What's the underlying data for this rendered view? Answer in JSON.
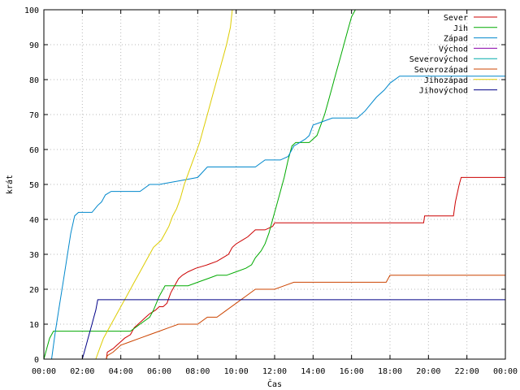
{
  "chart_data": {
    "type": "line",
    "title": "",
    "xlabel": "Čas",
    "ylabel": "krát",
    "xlim": [
      0,
      24
    ],
    "ylim": [
      0,
      100
    ],
    "x_ticks": [
      "00:00",
      "02:00",
      "04:00",
      "06:00",
      "08:00",
      "10:00",
      "12:00",
      "14:00",
      "16:00",
      "18:00",
      "20:00",
      "22:00",
      "00:00"
    ],
    "y_ticks": [
      0,
      10,
      20,
      30,
      40,
      50,
      60,
      70,
      80,
      90,
      100
    ],
    "grid": true,
    "legend": "top-right",
    "series": [
      {
        "name": "Sever",
        "color": "#cc0000",
        "x": [
          3.25,
          3.3,
          3.6,
          3.8,
          4.0,
          4.2,
          4.5,
          4.7,
          4.9,
          5.1,
          5.3,
          5.5,
          5.8,
          6.0,
          6.2,
          6.4,
          6.6,
          6.8,
          7.0,
          7.2,
          7.5,
          7.9,
          8.5,
          9.0,
          9.3,
          9.6,
          9.8,
          10.0,
          10.3,
          10.6,
          11.0,
          11.5,
          11.9,
          12.0,
          12.5,
          13.0,
          14.0,
          16.0,
          18.0,
          19.0,
          19.75,
          19.8,
          21.3,
          21.4,
          21.6,
          21.7,
          24.0
        ],
        "y": [
          0,
          2,
          3,
          4,
          5,
          6,
          7,
          9,
          10,
          11,
          12,
          13,
          14,
          15,
          15,
          16,
          19,
          21,
          23,
          24,
          25,
          26,
          27,
          28,
          29,
          30,
          32,
          33,
          34,
          35,
          37,
          37,
          38,
          39,
          39,
          39,
          39,
          39,
          39,
          39,
          39,
          41,
          41,
          45,
          50,
          52,
          52
        ]
      },
      {
        "name": "Jih",
        "color": "#00aa00",
        "x": [
          0,
          0.2,
          0.3,
          0.4,
          0.5,
          1.0,
          2.0,
          3.0,
          4.0,
          4.5,
          5.0,
          5.5,
          5.7,
          6.0,
          6.3,
          6.6,
          7.0,
          7.5,
          8.0,
          8.5,
          9.0,
          9.5,
          10.0,
          10.5,
          10.8,
          11.0,
          11.3,
          11.5,
          11.7,
          11.9,
          12.1,
          12.3,
          12.5,
          12.7,
          12.9,
          13.1,
          13.5,
          13.8,
          14.0,
          14.2,
          14.4,
          14.6,
          14.8,
          15.0,
          15.2,
          15.4,
          15.6,
          15.8,
          16.0,
          16.2
        ],
        "y": [
          0,
          4,
          6,
          7,
          8,
          8,
          8,
          8,
          8,
          8,
          10,
          12,
          14,
          18,
          21,
          21,
          21,
          21,
          22,
          23,
          24,
          24,
          25,
          26,
          27,
          29,
          31,
          33,
          36,
          40,
          44,
          48,
          52,
          57,
          61,
          62,
          62,
          62,
          63,
          64,
          67,
          70,
          74,
          78,
          82,
          86,
          90,
          94,
          98,
          100
        ]
      },
      {
        "name": "Západ",
        "color": "#0088cc",
        "x": [
          0.4,
          0.6,
          0.8,
          1.0,
          1.2,
          1.4,
          1.6,
          1.8,
          2.0,
          2.5,
          2.8,
          3.0,
          3.2,
          3.5,
          4.0,
          5.0,
          5.5,
          6.0,
          7.0,
          8.0,
          8.5,
          9.0,
          10.0,
          11.0,
          11.5,
          12.0,
          12.3,
          12.7,
          13.0,
          13.3,
          13.6,
          13.8,
          14.0,
          14.5,
          15.0,
          16.0,
          16.3,
          16.7,
          17.0,
          17.3,
          17.7,
          18.0,
          18.5,
          19.0,
          20.0,
          21.0,
          22.0,
          23.0,
          24.0
        ],
        "y": [
          0,
          8,
          15,
          22,
          29,
          36,
          41,
          42,
          42,
          42,
          44,
          45,
          47,
          48,
          48,
          48,
          50,
          50,
          51,
          52,
          55,
          55,
          55,
          55,
          57,
          57,
          57,
          58,
          61,
          62,
          63,
          64,
          67,
          68,
          69,
          69,
          69,
          71,
          73,
          75,
          77,
          79,
          81,
          81,
          81,
          81,
          81,
          81,
          81
        ]
      },
      {
        "name": "Východ",
        "color": "#8800aa",
        "x": [],
        "y": []
      },
      {
        "name": "Severovýchod",
        "color": "#00aaaa",
        "x": [],
        "y": []
      },
      {
        "name": "Severozápad",
        "color": "#cc4400",
        "x": [
          3.25,
          3.3,
          3.6,
          3.8,
          4.0,
          4.5,
          5.0,
          5.5,
          6.0,
          6.5,
          7.0,
          7.5,
          8.0,
          8.5,
          9.0,
          9.5,
          10.0,
          10.5,
          11.0,
          11.5,
          12.0,
          12.5,
          13.0,
          14.0,
          15.0,
          16.0,
          17.0,
          17.8,
          18.0,
          19.0,
          20.0,
          21.0,
          22.0,
          23.0,
          24.0
        ],
        "y": [
          0,
          1,
          2,
          3,
          4,
          5,
          6,
          7,
          8,
          9,
          10,
          10,
          10,
          12,
          12,
          14,
          16,
          18,
          20,
          20,
          20,
          21,
          22,
          22,
          22,
          22,
          22,
          22,
          24,
          24,
          24,
          24,
          24,
          24,
          24
        ]
      },
      {
        "name": "Jihozápad",
        "color": "#ddcc00",
        "x": [
          2.7,
          2.9,
          3.1,
          3.3,
          3.5,
          3.7,
          3.9,
          4.1,
          4.3,
          4.5,
          4.7,
          4.9,
          5.1,
          5.3,
          5.5,
          5.7,
          5.9,
          6.1,
          6.3,
          6.5,
          6.7,
          6.9,
          7.1,
          7.3,
          7.5,
          7.7,
          7.9,
          8.1,
          8.3,
          8.5,
          8.7,
          8.9,
          9.1,
          9.3,
          9.5,
          9.7,
          9.8
        ],
        "y": [
          0,
          3,
          6,
          8,
          10,
          12,
          14,
          16,
          18,
          20,
          22,
          24,
          26,
          28,
          30,
          32,
          33,
          34,
          36,
          38,
          41,
          43,
          46,
          50,
          53,
          56,
          59,
          62,
          66,
          70,
          74,
          78,
          82,
          86,
          90,
          95,
          100
        ]
      },
      {
        "name": "Jihovýchod",
        "color": "#000088",
        "x": [
          2.0,
          2.1,
          2.2,
          2.3,
          2.4,
          2.5,
          2.6,
          2.7,
          2.8,
          3.0,
          6.0,
          10.0,
          15.0,
          20.0,
          24.0
        ],
        "y": [
          0,
          2,
          4,
          6,
          8,
          10,
          12,
          14,
          17,
          17,
          17,
          17,
          17,
          17,
          17
        ]
      }
    ]
  }
}
